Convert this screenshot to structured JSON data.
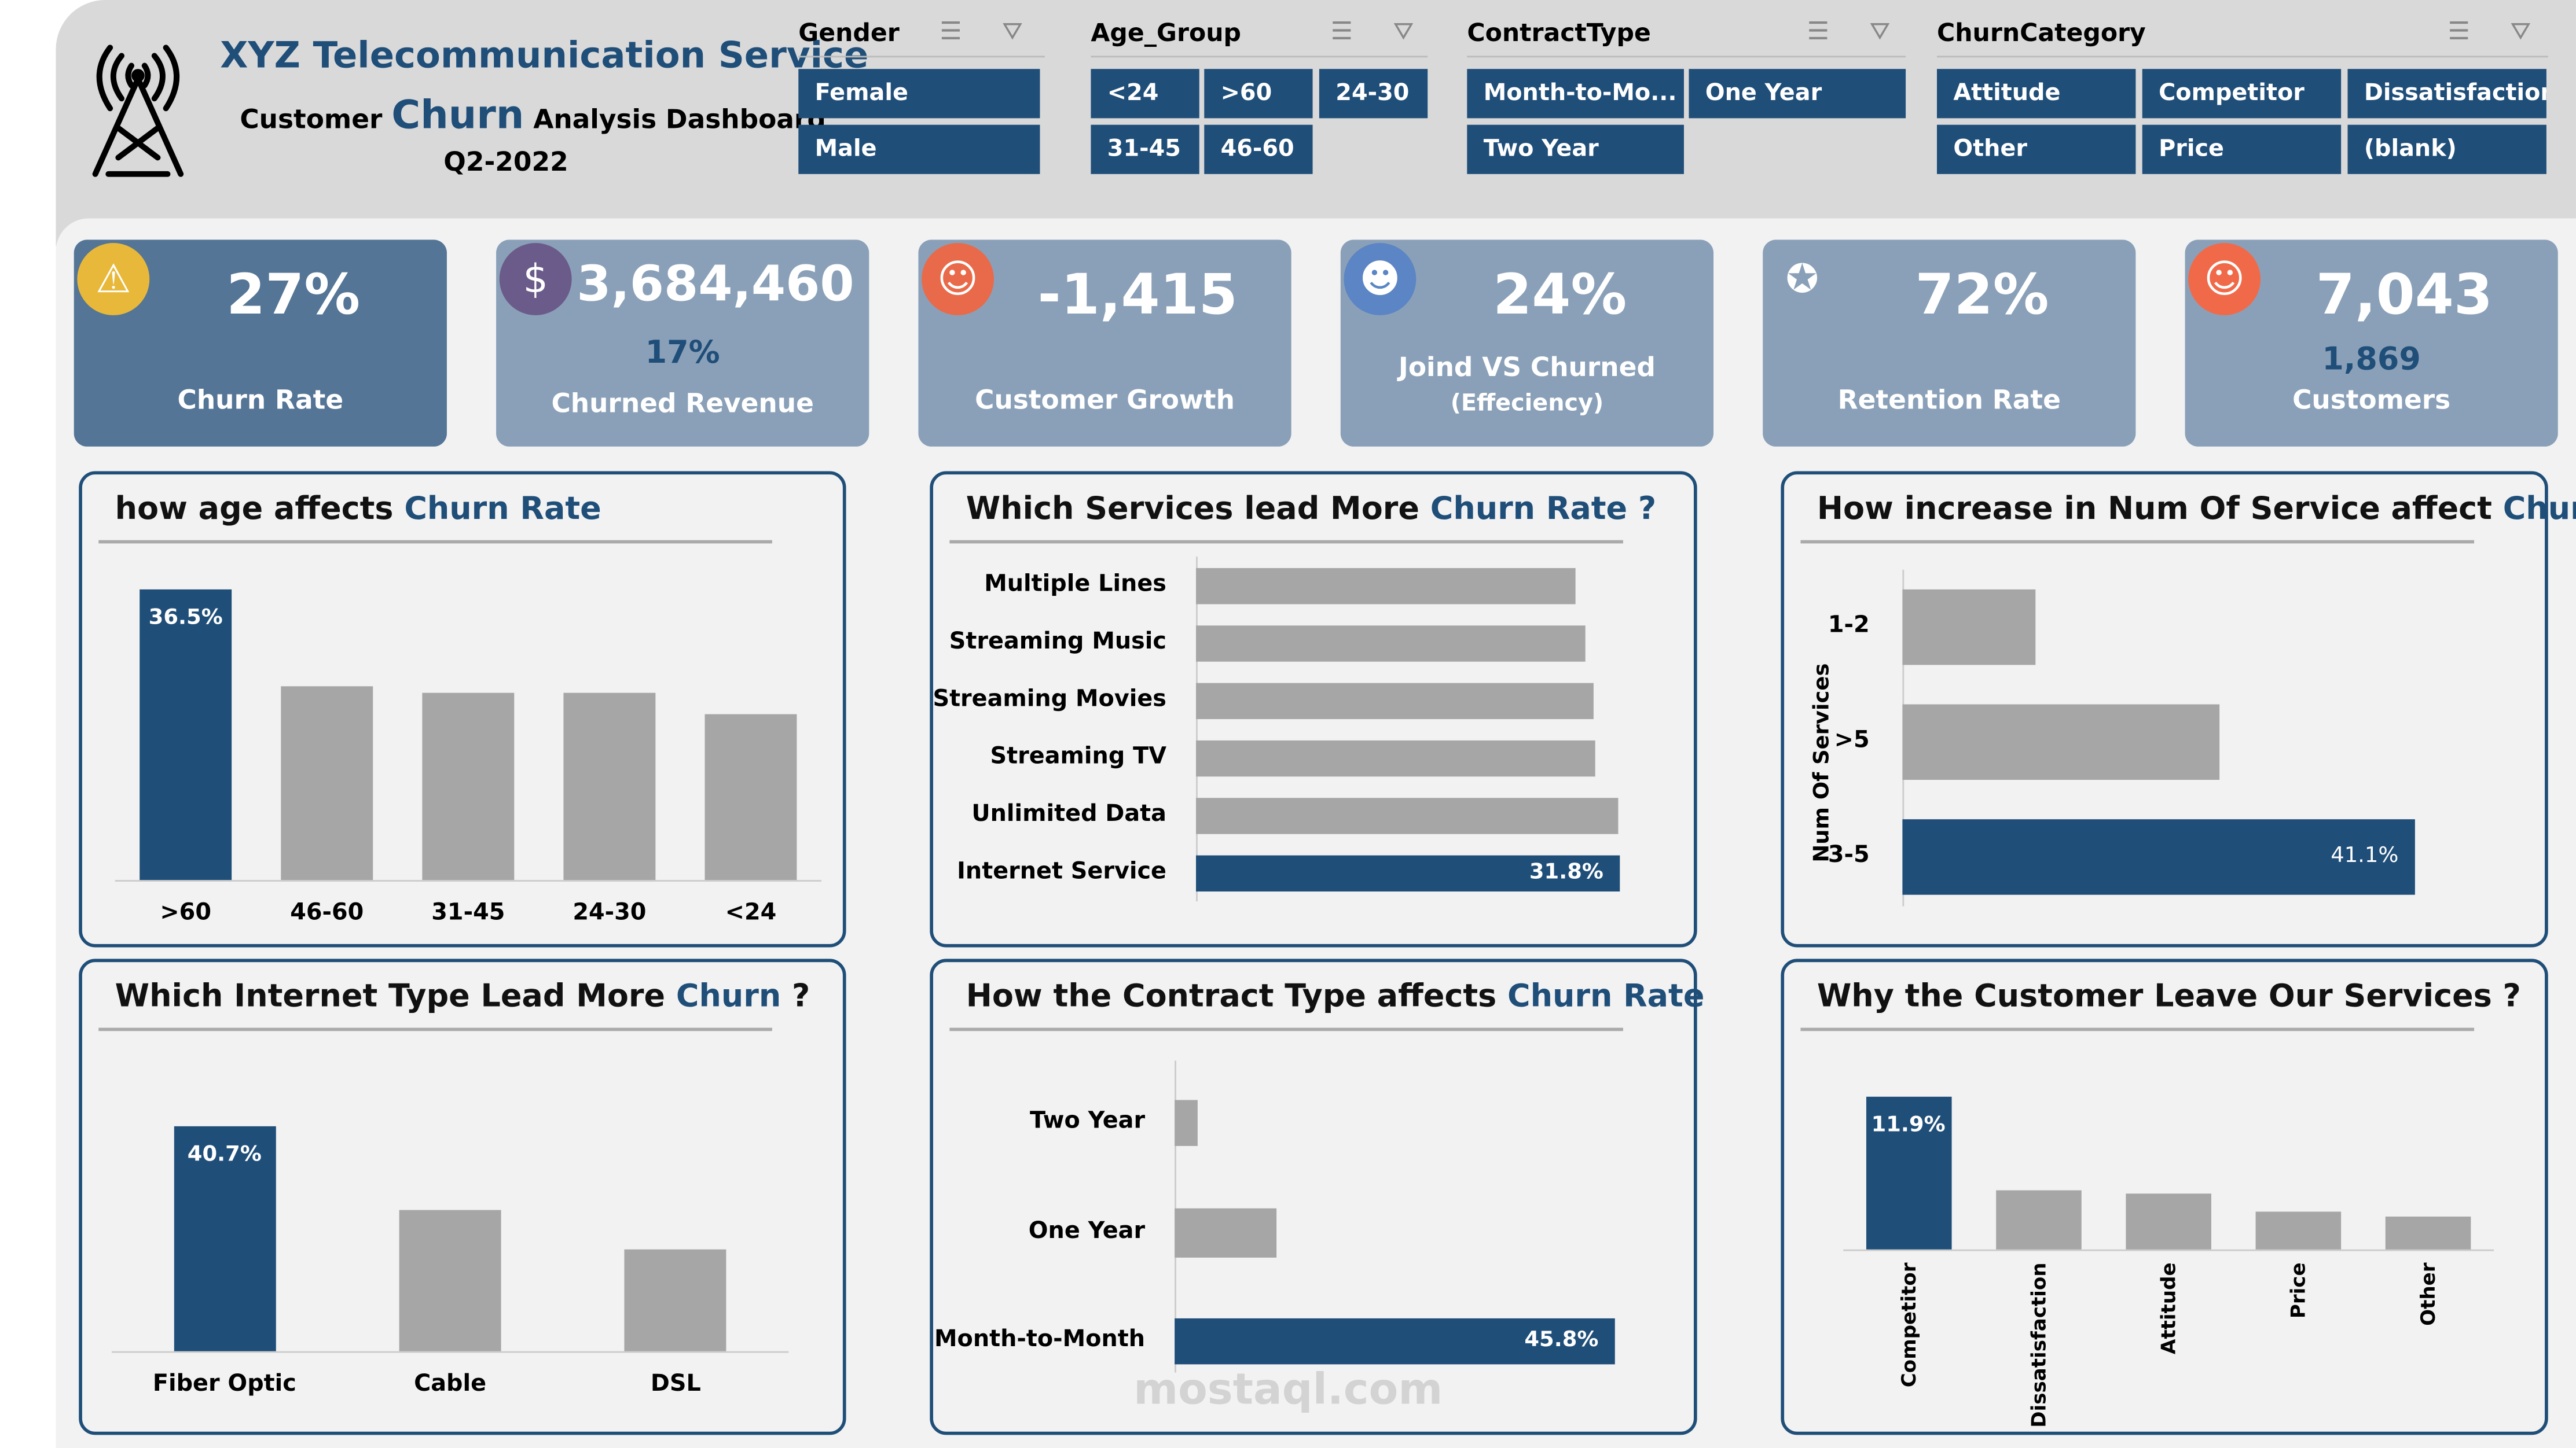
{
  "header": {
    "title": "XYZ Telecommunication Service",
    "subtitle_pre": "Customer",
    "subtitle_em": "Churn",
    "subtitle_post": "Analysis Dashboard",
    "period": "Q2-2022"
  },
  "slicers": [
    {
      "title": "Gender",
      "items": [
        "Female",
        "Male"
      ]
    },
    {
      "title": "Age_Group",
      "items": [
        "<24",
        ">60",
        "24-30",
        "31-45",
        "46-60"
      ]
    },
    {
      "title": "ContractType",
      "items": [
        "Month-to-Mo...",
        "One Year",
        "Two Year"
      ]
    },
    {
      "title": "ChurnCategory",
      "items": [
        "Attitude",
        "Competitor",
        "Dissatisfaction",
        "Other",
        "Price",
        "(blank)"
      ]
    }
  ],
  "kpis": [
    {
      "value": "27%",
      "label": "Churn Rate",
      "icon": "warning-chart-icon"
    },
    {
      "value": "3,684,460",
      "sub": "17%",
      "label": "Churned Revenue",
      "icon": "money-percent-icon"
    },
    {
      "value": "-1,415",
      "label": "Customer Growth",
      "icon": "client-icon"
    },
    {
      "value": "24%",
      "label": "Joind VS Churned",
      "label2": "(Effeciency)",
      "icon": "user-icon"
    },
    {
      "value": "72%",
      "label": "Retention Rate",
      "icon": "team-stars-icon"
    },
    {
      "value": "7,043",
      "sub": "1,869",
      "label": "Customers",
      "icon": "customers-icon"
    }
  ],
  "colors": {
    "accent": "#1f4e79",
    "bar": "#a6a6a6",
    "kpi": "#8aa0b8",
    "kpi_active": "#547596"
  },
  "watermark": "mostaql.com",
  "chart_data": [
    {
      "type": "bar",
      "title_pre": "how age affects",
      "title_hl": "Churn Rate",
      "title_post": "",
      "categories": [
        ">60",
        "46-60",
        "31-45",
        "24-30",
        "<24"
      ],
      "values": [
        36.5,
        24.3,
        23.5,
        23.5,
        20.8
      ],
      "labels": [
        "36.5%",
        "",
        "",
        "",
        ""
      ],
      "highlight": 0,
      "unit": "%"
    },
    {
      "type": "bar-horizontal",
      "title_pre": "Which Services lead More",
      "title_hl": "Churn Rate ?",
      "title_post": "",
      "categories": [
        "Multiple Lines",
        "Streaming Music",
        "Streaming Movies",
        "Streaming TV",
        "Unlimited Data",
        "Internet Service"
      ],
      "values": [
        28.5,
        29.2,
        29.8,
        30.0,
        31.7,
        31.8
      ],
      "labels": [
        "",
        "",
        "",
        "",
        "",
        "31.8%"
      ],
      "highlight": 5,
      "unit": "%"
    },
    {
      "type": "bar-horizontal",
      "title_pre": "How increase in Num Of Service affect",
      "title_hl": "Churn",
      "title_post": "?",
      "ylabel": "Num Of Services",
      "categories": [
        "1-2",
        ">5",
        "3-5"
      ],
      "values": [
        10.7,
        25.4,
        41.1
      ],
      "labels": [
        "",
        "",
        "41.1%"
      ],
      "highlight": 2,
      "unit": "%"
    },
    {
      "type": "bar",
      "title_pre": "Which Internet Type Lead More",
      "title_hl": "Churn",
      "title_post": "?",
      "categories": [
        "Fiber Optic",
        "Cable",
        "DSL"
      ],
      "values": [
        40.7,
        25.5,
        18.5
      ],
      "labels": [
        "40.7%",
        "",
        ""
      ],
      "highlight": 0,
      "unit": "%"
    },
    {
      "type": "bar-horizontal",
      "title_pre": "How the Contract Type affects",
      "title_hl": "Churn Rate",
      "title_post": "",
      "categories": [
        "Two Year",
        "One Year",
        "Month-to-Month"
      ],
      "values": [
        2.4,
        10.6,
        45.8
      ],
      "labels": [
        "",
        "",
        "45.8%"
      ],
      "highlight": 2,
      "unit": "%"
    },
    {
      "type": "bar",
      "title_pre": "Why the Customer Leave Our Services ?",
      "title_hl": "",
      "title_post": "",
      "categories": [
        "Competitor",
        "Dissatisfaction",
        "Attitude",
        "Price",
        "Other"
      ],
      "values": [
        11.9,
        4.6,
        4.3,
        3.0,
        2.5
      ],
      "labels": [
        "11.9%",
        "",
        "",
        "",
        ""
      ],
      "highlight": 0,
      "unit": "%",
      "rotated_labels": true
    }
  ]
}
